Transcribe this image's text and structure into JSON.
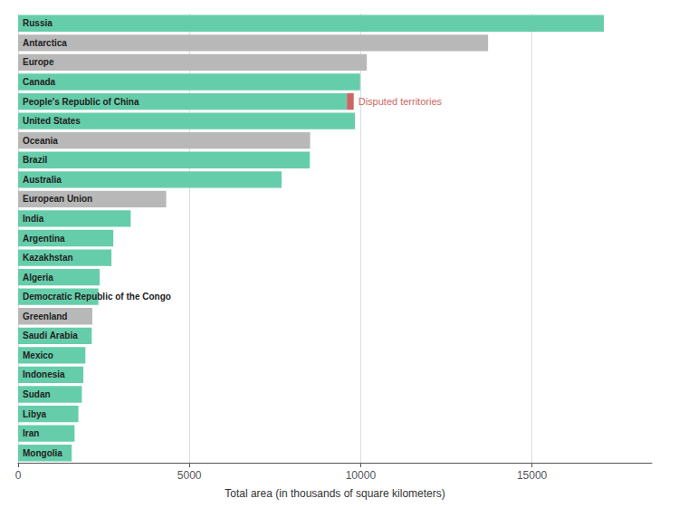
{
  "chart_data": {
    "type": "bar",
    "orientation": "horizontal",
    "stacked": true,
    "xlabel": "Total area (in thousands of square kilometers)",
    "categories": [
      "Russia",
      "Antarctica",
      "Europe",
      "Canada",
      "People's Republic of China",
      "United States",
      "Oceania",
      "Brazil",
      "Australia",
      "European Union",
      "India",
      "Argentina",
      "Kazakhstan",
      "Algeria",
      "Democratic Republic of the Congo",
      "Greenland",
      "Saudi Arabia",
      "Mexico",
      "Indonesia",
      "Sudan",
      "Libya",
      "Iran",
      "Mongolia"
    ],
    "values": [
      17098,
      13720,
      10180,
      9985,
      9597,
      9834,
      8525,
      8516,
      7692,
      4324,
      3287,
      2780,
      2725,
      2382,
      2345,
      2166,
      2150,
      1964,
      1905,
      1861,
      1760,
      1648,
      1564
    ],
    "colors": [
      "#66cdaa",
      "#b8b8b8",
      "#b8b8b8",
      "#66cdaa",
      "#66cdaa",
      "#66cdaa",
      "#b8b8b8",
      "#66cdaa",
      "#66cdaa",
      "#b8b8b8",
      "#66cdaa",
      "#66cdaa",
      "#66cdaa",
      "#66cdaa",
      "#66cdaa",
      "#b8b8b8",
      "#66cdaa",
      "#66cdaa",
      "#66cdaa",
      "#66cdaa",
      "#66cdaa",
      "#66cdaa",
      "#66cdaa"
    ],
    "disputed": {
      "values": [
        null,
        null,
        null,
        null,
        200,
        null,
        null,
        null,
        null,
        null,
        null,
        null,
        null,
        null,
        null,
        null,
        null,
        null,
        null,
        null,
        null,
        null,
        null
      ],
      "color": "#cc6666",
      "label": "Disputed territories"
    },
    "xlim": [
      0,
      18500
    ],
    "xticks": [
      0,
      5000,
      10000,
      15000
    ],
    "grid": true,
    "tick_labels": "x"
  }
}
